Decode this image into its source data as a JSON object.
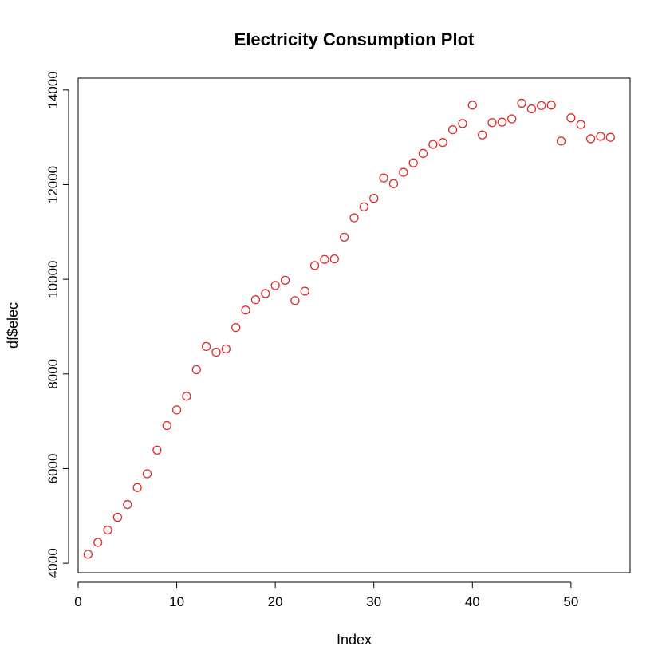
{
  "chart_data": {
    "type": "scatter",
    "title": "Electricity Consumption Plot",
    "xlabel": "Index",
    "ylabel": "df$elec",
    "xlim": [
      0,
      56
    ],
    "ylim": [
      3800,
      14250
    ],
    "x_ticks": [
      0,
      10,
      20,
      30,
      40,
      50
    ],
    "y_ticks": [
      4000,
      6000,
      8000,
      10000,
      12000,
      14000
    ],
    "grid": false,
    "legend": "none",
    "point_color": "#DF2A2A",
    "x": [
      1,
      2,
      3,
      4,
      5,
      6,
      7,
      8,
      9,
      10,
      11,
      12,
      13,
      14,
      15,
      16,
      17,
      18,
      19,
      20,
      21,
      22,
      23,
      24,
      25,
      26,
      27,
      28,
      29,
      30,
      31,
      32,
      33,
      34,
      35,
      36,
      37,
      38,
      39,
      40,
      41,
      42,
      43,
      44,
      45,
      46,
      47,
      48,
      49,
      50,
      51,
      52,
      53,
      54
    ],
    "y": [
      4190,
      4440,
      4700,
      4970,
      5240,
      5600,
      5890,
      6390,
      6910,
      7240,
      7530,
      8090,
      8580,
      8460,
      8530,
      8980,
      9350,
      9570,
      9700,
      9870,
      9980,
      9550,
      9750,
      10290,
      10420,
      10430,
      10890,
      11300,
      11530,
      11710,
      12140,
      12020,
      12260,
      12460,
      12660,
      12850,
      12890,
      13160,
      13290,
      13680,
      13050,
      13310,
      13320,
      13390,
      13720,
      13600,
      13670,
      13680,
      12920,
      13410,
      13270,
      12970,
      13020,
      13000
    ]
  }
}
